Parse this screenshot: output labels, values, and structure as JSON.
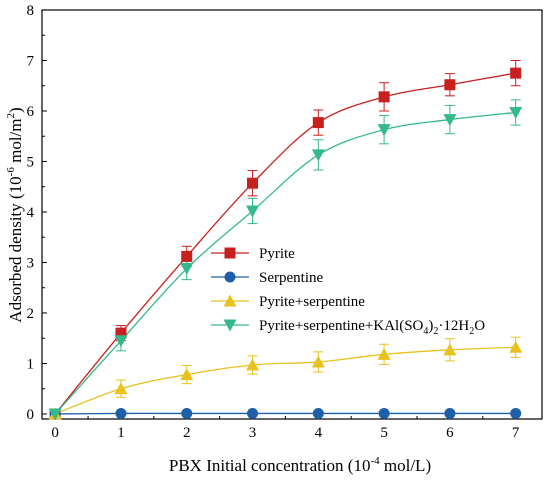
{
  "chart_data": {
    "type": "line",
    "title": "",
    "xlabel": "PBX Initial concentration (10",
    "xlabel_sup": "-4",
    "xlabel_tail": " mol/L)",
    "ylabel": "Adsorbed density (10",
    "ylabel_sup": "-6",
    "ylabel_mid": " mol/m",
    "ylabel_sup2": "2",
    "ylabel_tail": ")",
    "x_ticks": [
      "0",
      "1",
      "2",
      "3",
      "4",
      "5",
      "6",
      "7"
    ],
    "y_ticks": [
      "0",
      "1",
      "2",
      "3",
      "4",
      "5",
      "6",
      "7",
      "8"
    ],
    "xlim": [
      -0.2,
      7.4
    ],
    "ylim": [
      -0.1,
      8
    ],
    "grid": false,
    "legend_position": "center-right",
    "x": [
      0,
      1,
      2,
      3,
      4,
      5,
      6,
      7
    ],
    "series": [
      {
        "name": "Pyrite",
        "marker": "square",
        "color": "#c8201e",
        "values": [
          0,
          1.6,
          3.12,
          4.57,
          5.77,
          6.28,
          6.52,
          6.75
        ],
        "errors": [
          0,
          0.15,
          0.2,
          0.25,
          0.25,
          0.28,
          0.22,
          0.25
        ]
      },
      {
        "name": "Serpentine",
        "marker": "circle",
        "color": "#1f5fa8",
        "values": [
          0,
          0.01,
          0.01,
          0.01,
          0.01,
          0.01,
          0.01,
          0.01
        ],
        "errors": [
          0,
          0,
          0,
          0,
          0,
          0,
          0,
          0
        ]
      },
      {
        "name": "Pyrite+serpentine",
        "marker": "triangle-up",
        "color": "#e8c21f",
        "values": [
          0,
          0.5,
          0.78,
          0.97,
          1.03,
          1.18,
          1.27,
          1.32
        ],
        "errors": [
          0,
          0.17,
          0.18,
          0.18,
          0.2,
          0.2,
          0.22,
          0.2
        ]
      },
      {
        "name": "Pyrite+serpentine+KAl(SO4)2·12H2O",
        "label_parts": [
          "Pyrite+serpentine+KAl(SO",
          "4",
          ")",
          "2",
          "·12H",
          "2",
          "O"
        ],
        "marker": "triangle-down",
        "color": "#35b98a",
        "values": [
          0,
          1.45,
          2.88,
          4.02,
          5.13,
          5.63,
          5.83,
          5.97
        ],
        "errors": [
          0,
          0.2,
          0.22,
          0.25,
          0.3,
          0.28,
          0.28,
          0.25
        ]
      }
    ]
  }
}
